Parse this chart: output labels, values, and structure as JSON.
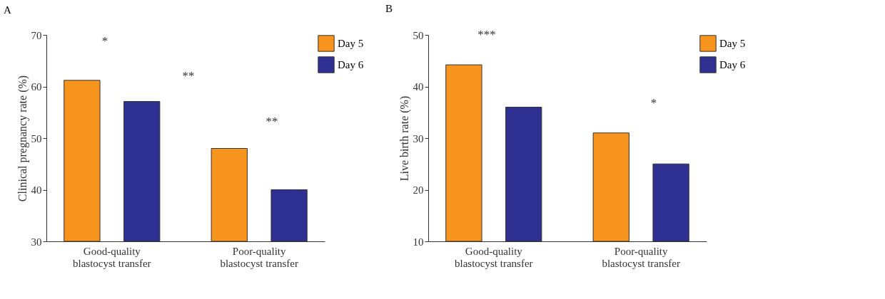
{
  "chart_data": [
    {
      "type": "bar",
      "title": "A",
      "ylabel": "Clinical pregnancy rate (%)",
      "categories": [
        "Good-quality blastocyst transfer",
        "Poor-quality blastocyst transfer"
      ],
      "series": [
        {
          "name": "Day 5",
          "color": "#f7941d",
          "values": [
            61.2,
            48
          ]
        },
        {
          "name": "Day 6",
          "color": "#2e3192",
          "values": [
            57.1,
            40
          ]
        }
      ],
      "ylim": [
        30,
        70
      ],
      "yticks": [
        30,
        40,
        50,
        60,
        70
      ],
      "grid": false,
      "legend": "top right",
      "annotations": [
        "*",
        "**",
        "**"
      ]
    },
    {
      "type": "bar",
      "title": "B",
      "ylabel": "Live birth rate (%)",
      "categories": [
        "Good-quality blastocyst transfer",
        "Poor-quality blastocyst transfer"
      ],
      "series": [
        {
          "name": "Day 5",
          "color": "#f7941d",
          "values": [
            44.2,
            31
          ]
        },
        {
          "name": "Day 6",
          "color": "#2e3192",
          "values": [
            36,
            25
          ]
        }
      ],
      "ylim": [
        10,
        50
      ],
      "yticks": [
        10,
        20,
        30,
        40,
        50
      ],
      "grid": false,
      "legend": "top right",
      "annotations": [
        "***",
        "*"
      ]
    }
  ]
}
